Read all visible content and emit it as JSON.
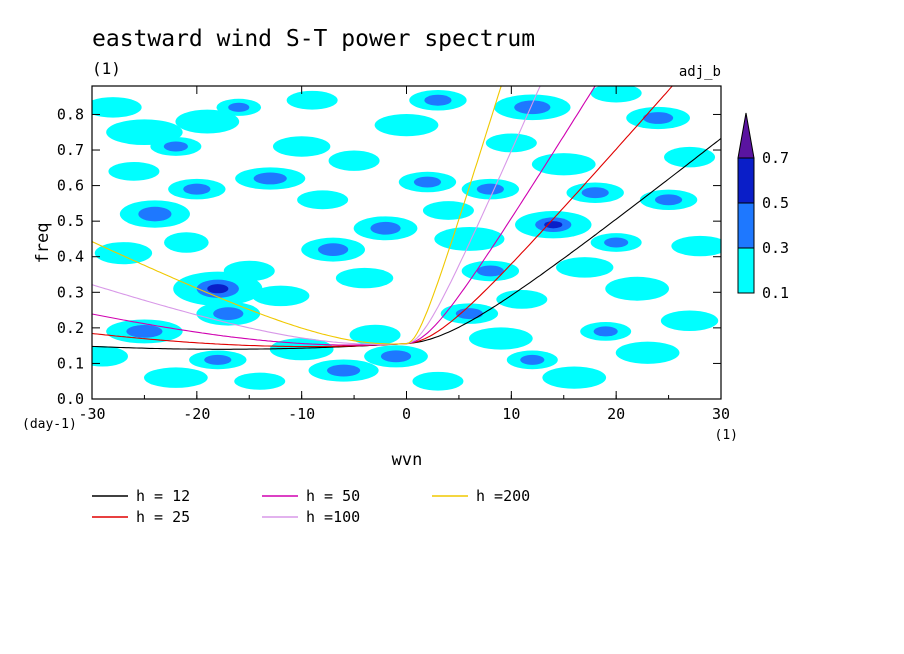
{
  "chart_data": {
    "type": "heatmap",
    "title": "eastward wind S-T power spectrum",
    "subtitle": "(1)",
    "tag": "adj_b",
    "xlabel": "wvn",
    "ylabel": "freq",
    "x_unit": "(1)",
    "y_unit": "(day-1)",
    "xlim": [
      -30,
      30
    ],
    "ylim": [
      0,
      0.88
    ],
    "x_ticks": [
      "-30",
      "-20",
      "-10",
      "0",
      "10",
      "20",
      "30"
    ],
    "y_ticks": [
      "0.0",
      "0.1",
      "0.2",
      "0.3",
      "0.4",
      "0.5",
      "0.6",
      "0.7",
      "0.8"
    ],
    "colorbar": {
      "levels": [
        "0.1",
        "0.3",
        "0.5",
        "0.7"
      ],
      "colors": [
        "#00ffff",
        "#1e78ff",
        "#0a1ec8",
        "#5a14a0"
      ]
    },
    "shading_blobs": [
      [
        -28,
        0.82,
        0.9,
        0.012,
        0
      ],
      [
        -25,
        0.75,
        1.2,
        0.015,
        0
      ],
      [
        -22,
        0.71,
        0.8,
        0.011,
        1
      ],
      [
        -19,
        0.78,
        1.0,
        0.014,
        0
      ],
      [
        -24,
        0.52,
        1.1,
        0.016,
        1
      ],
      [
        -27,
        0.41,
        0.9,
        0.013,
        0
      ],
      [
        -21,
        0.44,
        0.7,
        0.012,
        0
      ],
      [
        -18,
        0.31,
        1.4,
        0.02,
        2
      ],
      [
        -17,
        0.24,
        1.0,
        0.014,
        1
      ],
      [
        -15,
        0.36,
        0.8,
        0.012,
        0
      ],
      [
        -13,
        0.62,
        1.1,
        0.013,
        1
      ],
      [
        -10,
        0.71,
        0.9,
        0.012,
        0
      ],
      [
        -8,
        0.56,
        0.8,
        0.011,
        0
      ],
      [
        -7,
        0.42,
        1.0,
        0.014,
        1
      ],
      [
        -12,
        0.29,
        0.9,
        0.012,
        0
      ],
      [
        -25,
        0.19,
        1.2,
        0.014,
        1
      ],
      [
        -29,
        0.12,
        0.8,
        0.012,
        0
      ],
      [
        -22,
        0.06,
        1.0,
        0.012,
        0
      ],
      [
        -18,
        0.11,
        0.9,
        0.011,
        1
      ],
      [
        -14,
        0.05,
        0.8,
        0.01,
        0
      ],
      [
        -10,
        0.14,
        1.0,
        0.013,
        0
      ],
      [
        -6,
        0.08,
        1.1,
        0.013,
        1
      ],
      [
        -3,
        0.18,
        0.8,
        0.012,
        0
      ],
      [
        -1,
        0.12,
        1.0,
        0.013,
        1
      ],
      [
        -4,
        0.34,
        0.9,
        0.012,
        0
      ],
      [
        -2,
        0.48,
        1.0,
        0.014,
        1
      ],
      [
        -5,
        0.67,
        0.8,
        0.012,
        0
      ],
      [
        0,
        0.77,
        1.0,
        0.013,
        0
      ],
      [
        2,
        0.61,
        0.9,
        0.012,
        1
      ],
      [
        4,
        0.53,
        0.8,
        0.011,
        0
      ],
      [
        6,
        0.45,
        1.1,
        0.014,
        0
      ],
      [
        8,
        0.59,
        0.9,
        0.012,
        1
      ],
      [
        10,
        0.72,
        0.8,
        0.011,
        0
      ],
      [
        12,
        0.82,
        1.2,
        0.015,
        1
      ],
      [
        15,
        0.66,
        1.0,
        0.013,
        0
      ],
      [
        18,
        0.58,
        0.9,
        0.012,
        1
      ],
      [
        14,
        0.49,
        1.2,
        0.016,
        2
      ],
      [
        17,
        0.37,
        0.9,
        0.012,
        0
      ],
      [
        20,
        0.44,
        0.8,
        0.011,
        1
      ],
      [
        22,
        0.31,
        1.0,
        0.014,
        0
      ],
      [
        25,
        0.56,
        0.9,
        0.012,
        1
      ],
      [
        27,
        0.68,
        0.8,
        0.012,
        0
      ],
      [
        24,
        0.79,
        1.0,
        0.013,
        1
      ],
      [
        28,
        0.43,
        0.9,
        0.012,
        0
      ],
      [
        6,
        0.24,
        0.9,
        0.012,
        1
      ],
      [
        9,
        0.17,
        1.0,
        0.013,
        0
      ],
      [
        12,
        0.11,
        0.8,
        0.011,
        1
      ],
      [
        16,
        0.06,
        1.0,
        0.013,
        0
      ],
      [
        19,
        0.19,
        0.8,
        0.011,
        1
      ],
      [
        23,
        0.13,
        1.0,
        0.013,
        0
      ],
      [
        27,
        0.22,
        0.9,
        0.012,
        0
      ],
      [
        3,
        0.05,
        0.8,
        0.011,
        0
      ],
      [
        8,
        0.36,
        0.9,
        0.012,
        1
      ],
      [
        11,
        0.28,
        0.8,
        0.011,
        0
      ],
      [
        -26,
        0.64,
        0.8,
        0.011,
        0
      ],
      [
        -20,
        0.59,
        0.9,
        0.012,
        1
      ],
      [
        -9,
        0.84,
        0.8,
        0.011,
        0
      ],
      [
        3,
        0.84,
        0.9,
        0.012,
        1
      ],
      [
        20,
        0.86,
        0.8,
        0.011,
        0
      ],
      [
        -16,
        0.82,
        0.7,
        0.01,
        1
      ]
    ],
    "series": [
      {
        "name": "h = 12",
        "color": "#000000",
        "h": 12
      },
      {
        "name": "h = 25",
        "color": "#e00000",
        "h": 25
      },
      {
        "name": "h = 50",
        "color": "#d000b0",
        "h": 50
      },
      {
        "name": "h =100",
        "color": "#d898e8",
        "h": 100
      },
      {
        "name": "h =200",
        "color": "#f0c800",
        "h": 200
      }
    ]
  }
}
